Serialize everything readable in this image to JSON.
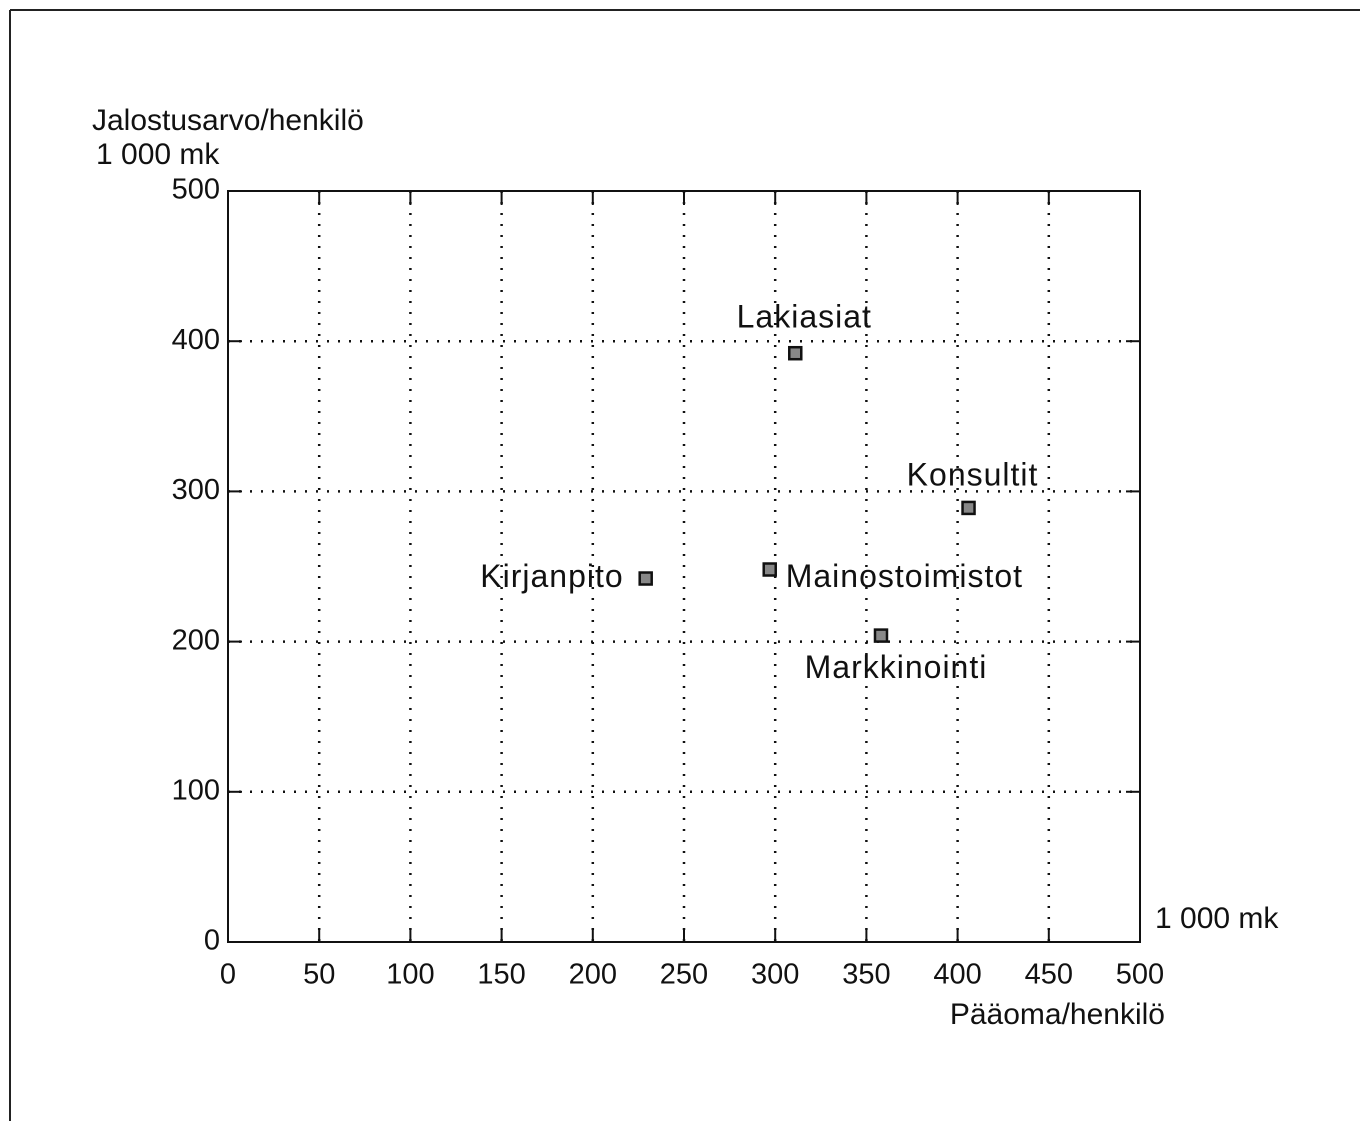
{
  "chart_data": {
    "type": "scatter",
    "ylabel": "Jalostusarvo/henkilö",
    "yunit": "1 000 mk",
    "xlabel": "Pääoma/henkilö",
    "xunit": "1 000 mk",
    "labels": [
      "Lakiasiat",
      "Konsultit",
      "Kirjanpito",
      "Mainostoimistot",
      "Markkinointi"
    ],
    "x": [
      311,
      406,
      229,
      297,
      358
    ],
    "values": [
      392,
      289,
      242,
      248,
      204
    ],
    "color": "#888888",
    "xlim": [
      0,
      500
    ],
    "ylim": [
      0,
      500
    ],
    "xticks": [
      0,
      50,
      100,
      150,
      200,
      250,
      300,
      350,
      400,
      450,
      500
    ],
    "yticks": [
      0,
      100,
      200,
      300,
      400,
      500
    ],
    "grid": true
  }
}
